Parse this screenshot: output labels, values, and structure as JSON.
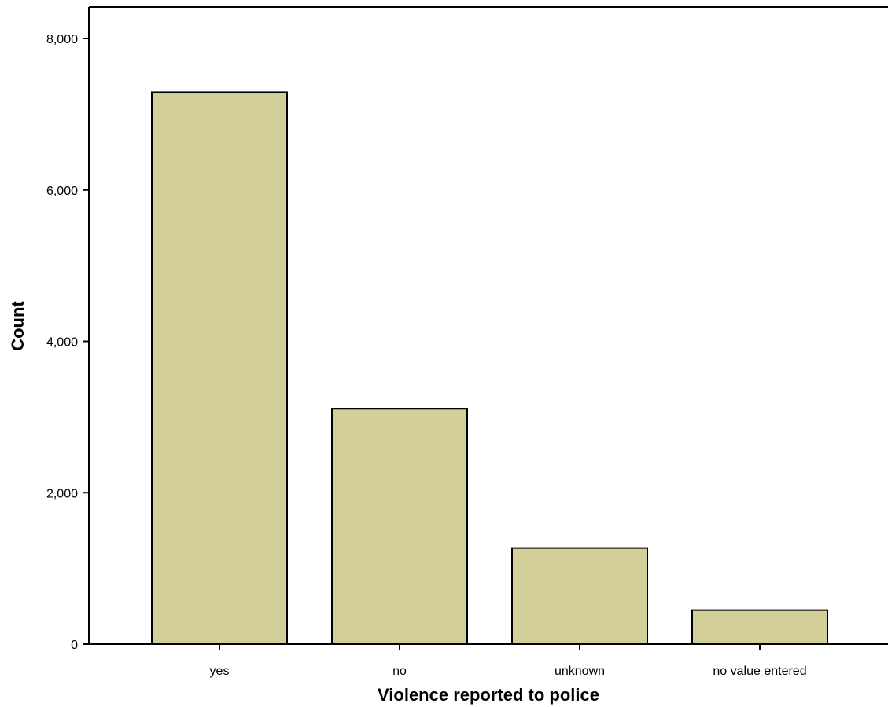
{
  "chart_data": {
    "type": "bar",
    "title": "",
    "xlabel": "Violence reported to police",
    "ylabel": "Count",
    "categories": [
      "yes",
      "no",
      "unknown",
      "no value entered"
    ],
    "values": [
      7290,
      3110,
      1270,
      450
    ],
    "ylim": [
      0,
      8400
    ],
    "yticks": [
      0,
      2000,
      4000,
      6000,
      8000
    ],
    "ytick_labels": [
      "0",
      "2,000",
      "4,000",
      "6,000",
      "8,000"
    ],
    "grid": false,
    "legend": "none",
    "bar_color": "#d3cf99",
    "bar_edge_color": "#000000"
  }
}
